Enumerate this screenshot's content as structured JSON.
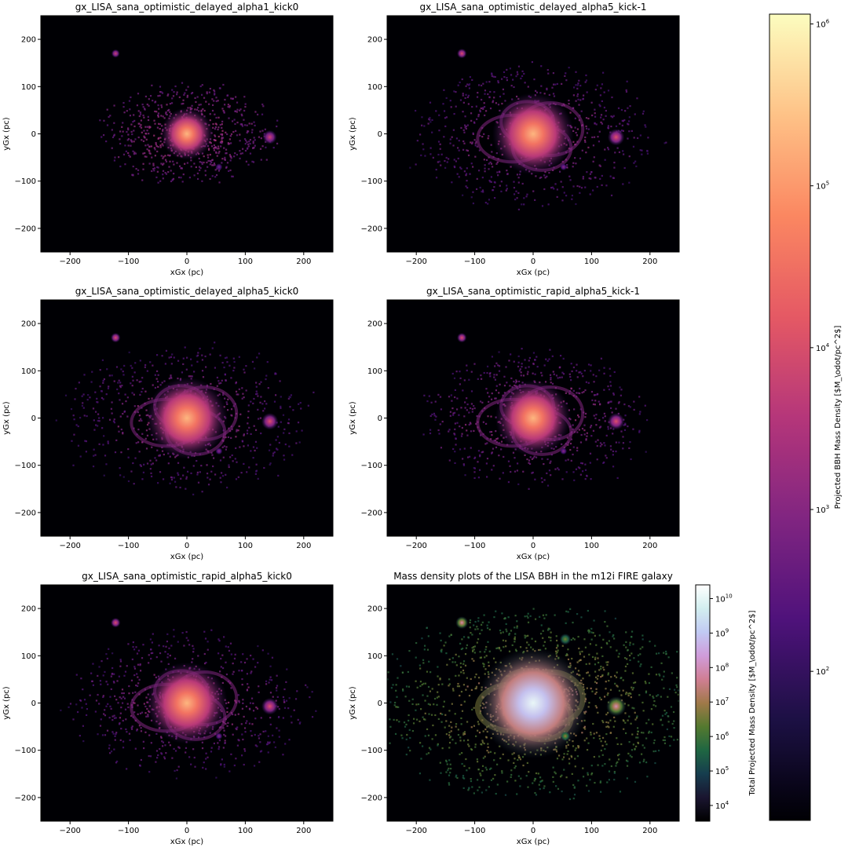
{
  "chart_data": [
    {
      "type": "heatmap",
      "title": "gx_LISA_sana_optimistic_delayed_alpha1_kick0",
      "xlabel": "xGx (pc)",
      "ylabel": "yGx (pc)",
      "xlim": [
        -250,
        250
      ],
      "ylim": [
        -250,
        250
      ],
      "xticks": [
        -200,
        -100,
        0,
        100,
        200
      ],
      "yticks": [
        -200,
        -100,
        0,
        100,
        200
      ],
      "colormap": "magma",
      "features": [
        {
          "x": 0,
          "y": 0,
          "r": 45,
          "peak": 0.85
        },
        {
          "x": 142,
          "y": -7,
          "r": 10,
          "peak": 0.55
        },
        {
          "x": -122,
          "y": 170,
          "r": 6,
          "peak": 0.55
        },
        {
          "x": 55,
          "y": -70,
          "r": 5,
          "peak": 0.35
        }
      ]
    },
    {
      "type": "heatmap",
      "title": "gx_LISA_sana_optimistic_delayed_alpha5_kick-1",
      "xlabel": "xGx (pc)",
      "ylabel": "yGx (pc)",
      "xlim": [
        -250,
        250
      ],
      "ylim": [
        -250,
        250
      ],
      "xticks": [
        -200,
        -100,
        0,
        100,
        200
      ],
      "yticks": [
        -200,
        -100,
        0,
        100,
        200
      ],
      "colormap": "magma",
      "features": [
        {
          "x": 0,
          "y": 0,
          "r": 70,
          "peak": 0.85
        },
        {
          "x": 142,
          "y": -7,
          "r": 12,
          "peak": 0.6
        },
        {
          "x": -122,
          "y": 170,
          "r": 7,
          "peak": 0.6
        },
        {
          "x": 52,
          "y": -70,
          "r": 5,
          "peak": 0.4
        }
      ]
    },
    {
      "type": "heatmap",
      "title": "gx_LISA_sana_optimistic_delayed_alpha5_kick0",
      "xlabel": "xGx (pc)",
      "ylabel": "yGx (pc)",
      "xlim": [
        -250,
        250
      ],
      "ylim": [
        -250,
        250
      ],
      "xticks": [
        -200,
        -100,
        0,
        100,
        200
      ],
      "yticks": [
        -200,
        -100,
        0,
        100,
        200
      ],
      "colormap": "magma",
      "features": [
        {
          "x": 0,
          "y": 0,
          "r": 70,
          "peak": 0.85
        },
        {
          "x": 142,
          "y": -7,
          "r": 12,
          "peak": 0.6
        },
        {
          "x": -122,
          "y": 170,
          "r": 7,
          "peak": 0.6
        },
        {
          "x": 55,
          "y": -70,
          "r": 5,
          "peak": 0.4
        }
      ]
    },
    {
      "type": "heatmap",
      "title": "gx_LISA_sana_optimistic_rapid_alpha5_kick-1",
      "xlabel": "xGx (pc)",
      "ylabel": "yGx (pc)",
      "xlim": [
        -250,
        250
      ],
      "ylim": [
        -250,
        250
      ],
      "xticks": [
        -200,
        -100,
        0,
        100,
        200
      ],
      "yticks": [
        -200,
        -100,
        0,
        100,
        200
      ],
      "colormap": "magma",
      "features": [
        {
          "x": 0,
          "y": 0,
          "r": 65,
          "peak": 0.85
        },
        {
          "x": 142,
          "y": -7,
          "r": 12,
          "peak": 0.6
        },
        {
          "x": -122,
          "y": 170,
          "r": 7,
          "peak": 0.6
        },
        {
          "x": 52,
          "y": -70,
          "r": 5,
          "peak": 0.4
        }
      ]
    },
    {
      "type": "heatmap",
      "title": "gx_LISA_sana_optimistic_rapid_alpha5_kick0",
      "xlabel": "xGx (pc)",
      "ylabel": "yGx (pc)",
      "xlim": [
        -250,
        250
      ],
      "ylim": [
        -250,
        250
      ],
      "xticks": [
        -200,
        -100,
        0,
        100,
        200
      ],
      "yticks": [
        -200,
        -100,
        0,
        100,
        200
      ],
      "colormap": "magma",
      "features": [
        {
          "x": 0,
          "y": 0,
          "r": 70,
          "peak": 0.85
        },
        {
          "x": 142,
          "y": -7,
          "r": 12,
          "peak": 0.6
        },
        {
          "x": -122,
          "y": 170,
          "r": 7,
          "peak": 0.6
        },
        {
          "x": 55,
          "y": -70,
          "r": 5,
          "peak": 0.4
        }
      ]
    },
    {
      "type": "heatmap",
      "title": "Mass density plots of the LISA BBH in the m12i FIRE galaxy",
      "xlabel": "xGx (pc)",
      "ylabel": "yGx (pc)",
      "xlim": [
        -250,
        250
      ],
      "ylim": [
        -250,
        250
      ],
      "xticks": [
        -200,
        -100,
        0,
        100,
        200
      ],
      "yticks": [
        -200,
        -100,
        0,
        100,
        200
      ],
      "colormap": "cubehelix",
      "features": [
        {
          "x": 0,
          "y": 0,
          "r": 95,
          "peak": 0.95
        },
        {
          "x": 142,
          "y": -7,
          "r": 14,
          "peak": 0.65
        },
        {
          "x": -122,
          "y": 170,
          "r": 9,
          "peak": 0.65
        },
        {
          "x": 55,
          "y": -70,
          "r": 7,
          "peak": 0.5
        },
        {
          "x": 55,
          "y": 135,
          "r": 8,
          "peak": 0.45
        }
      ],
      "colorbar": {
        "label": "Total Projected Mass Density [$M_\\odot/pc^2$]",
        "scale": "log",
        "ticks": [
          {
            "base": "10",
            "exp": "4",
            "value": 10000
          },
          {
            "base": "10",
            "exp": "5",
            "value": 100000
          },
          {
            "base": "10",
            "exp": "6",
            "value": 1000000
          },
          {
            "base": "10",
            "exp": "7",
            "value": 10000000
          },
          {
            "base": "10",
            "exp": "8",
            "value": 100000000
          },
          {
            "base": "10",
            "exp": "9",
            "value": 1000000000
          },
          {
            "base": "10",
            "exp": "10",
            "value": 10000000000
          }
        ],
        "range": [
          3500,
          25000000000
        ]
      }
    }
  ],
  "shared_colorbar": {
    "label": "Projected BBH Mass Density [$M_\\odot/pc^2$]",
    "scale": "log",
    "colormap": "magma",
    "ticks": [
      {
        "base": "10",
        "exp": "2",
        "value": 100
      },
      {
        "base": "10",
        "exp": "3",
        "value": 1000
      },
      {
        "base": "10",
        "exp": "4",
        "value": 10000
      },
      {
        "base": "10",
        "exp": "5",
        "value": 100000
      },
      {
        "base": "10",
        "exp": "6",
        "value": 1000000
      }
    ],
    "range": [
      12,
      1150000
    ]
  },
  "colors": {
    "background_panel": "#000004",
    "magma": [
      "#000004",
      "#1c1044",
      "#4f127b",
      "#812581",
      "#b5367a",
      "#e55964",
      "#fb8761",
      "#fec287",
      "#fcfdbf"
    ],
    "cubehelix": [
      "#000000",
      "#1a1530",
      "#163d4e",
      "#1f6642",
      "#54792f",
      "#a07949",
      "#d07e93",
      "#cf9cda",
      "#c1caf3",
      "#d2eeef",
      "#ffffff"
    ]
  }
}
